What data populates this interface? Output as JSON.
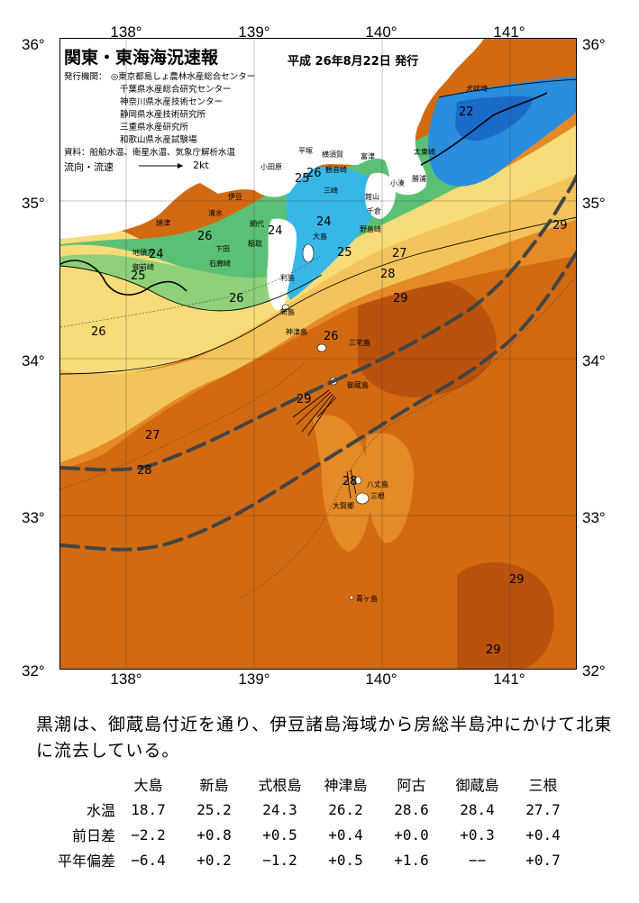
{
  "header": {
    "title": "関東・東海海況速報",
    "issued": "平成 26年8月22日 発行",
    "issuer_label": "発行機関：",
    "issuers": [
      "◎東京都島しょ農林水産総合センター",
      "千葉県水産総合研究センター",
      "神奈川県水産技術センター",
      "静岡県水産技術研究所",
      "三重県水産研究所",
      "和歌山県水産試験場"
    ],
    "sources": "資料：船舶水温、衛星水温、気象庁解析水温"
  },
  "legend": {
    "label": "流向・流速",
    "arrow_value": "2kt"
  },
  "axes": {
    "lon_labels": [
      "138°",
      "139°",
      "140°",
      "141°"
    ],
    "lat_labels_left": [
      "36°",
      "35°",
      "34°",
      "33°",
      "32°"
    ],
    "lat_labels_right": [
      "36°",
      "35°",
      "34°",
      "33°",
      "32°"
    ]
  },
  "map_labels": {
    "sst": [
      "22",
      "26",
      "25",
      "24",
      "26",
      "24",
      "25",
      "24",
      "25",
      "27",
      "28",
      "29",
      "26",
      "26",
      "29",
      "27",
      "28",
      "28",
      "29",
      "29"
    ],
    "places": [
      "犬吠埼",
      "太東崎",
      "勝浦",
      "小湊",
      "洲崎",
      "館山",
      "千倉",
      "野島崎",
      "鴨川",
      "平塚",
      "小田原",
      "横須賀",
      "観音崎",
      "三崎",
      "富津",
      "伊豆",
      "網代",
      "稲取",
      "下田",
      "石廊崎",
      "大島",
      "利島",
      "新島",
      "式根島",
      "神津島",
      "三宅島",
      "御蔵島",
      "八丈島",
      "三根",
      "大賀郷",
      "青ヶ島",
      "焼津",
      "清水",
      "御前崎",
      "地頭方",
      "宇佐美"
    ]
  },
  "colors": {
    "warm": "#d26a12",
    "hot": "#b34a0a",
    "orange": "#e88a25",
    "yellow": "#f4c55a",
    "green": "#5bc075",
    "cyan": "#34b6e6",
    "blue": "#1f7ed8",
    "deep": "#1060c0"
  },
  "summary": "黒潮は、御蔵島付近を通り、伊豆諸島海域から房総半島沖にかけて北東に流去している。",
  "table": {
    "stations": [
      "大島",
      "新島",
      "式根島",
      "神津島",
      "阿古",
      "御蔵島",
      "三根"
    ],
    "rows": [
      {
        "label": "水温",
        "values": [
          "18.7",
          "25.2",
          "24.3",
          "26.2",
          "28.6",
          "28.4",
          "27.7"
        ]
      },
      {
        "label": "前日差",
        "values": [
          "−2.2",
          "+0.8",
          "+0.5",
          "+0.4",
          "+0.0",
          "+0.3",
          "+0.4"
        ]
      },
      {
        "label": "平年偏差",
        "values": [
          "−6.4",
          "+0.2",
          "−1.2",
          "+0.5",
          "+1.6",
          "−−",
          "+0.7"
        ]
      }
    ]
  }
}
